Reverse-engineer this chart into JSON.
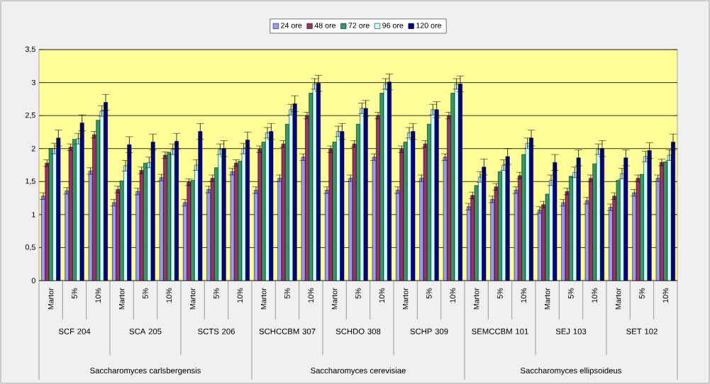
{
  "chart_data": {
    "type": "bar",
    "categories": [
      "Martor",
      "5%",
      "10%",
      "Martor",
      "5%",
      "10%",
      "Martor",
      "5%",
      "10%",
      "Martor",
      "5%",
      "10%",
      "Martor",
      "5%",
      "10%",
      "Martor",
      "5%",
      "10%",
      "Martor",
      "5%",
      "10%",
      "Martor",
      "5%",
      "10%",
      "Martor",
      "5%",
      "10%"
    ],
    "series": [
      {
        "name": "24 ore",
        "color": "#9999ff",
        "values": [
          1.28,
          1.36,
          1.66,
          1.18,
          1.35,
          1.56,
          1.18,
          1.38,
          1.65,
          1.37,
          1.55,
          1.87,
          1.37,
          1.55,
          1.87,
          1.37,
          1.55,
          1.87,
          1.12,
          1.23,
          1.37,
          1.07,
          1.18,
          1.21,
          1.11,
          1.33,
          1.55
        ],
        "errors": [
          0.05,
          0.05,
          0.05,
          0.05,
          0.05,
          0.05,
          0.05,
          0.05,
          0.05,
          0.05,
          0.05,
          0.05,
          0.05,
          0.05,
          0.05,
          0.05,
          0.05,
          0.05,
          0.05,
          0.05,
          0.05,
          0.05,
          0.05,
          0.05,
          0.05,
          0.05,
          0.05
        ]
      },
      {
        "name": "48 ore",
        "color": "#993366",
        "values": [
          1.78,
          2.02,
          2.21,
          1.38,
          1.67,
          1.9,
          1.49,
          1.55,
          1.78,
          1.99,
          2.07,
          2.5,
          1.99,
          2.07,
          2.5,
          1.99,
          2.07,
          2.5,
          1.29,
          1.42,
          1.59,
          1.15,
          1.35,
          1.55,
          1.28,
          1.55,
          1.79
        ],
        "errors": [
          0.05,
          0.05,
          0.05,
          0.05,
          0.05,
          0.05,
          0.05,
          0.05,
          0.05,
          0.05,
          0.05,
          0.05,
          0.05,
          0.05,
          0.05,
          0.05,
          0.05,
          0.05,
          0.05,
          0.05,
          0.05,
          0.05,
          0.05,
          0.05,
          0.05,
          0.05,
          0.05
        ]
      },
      {
        "name": "72 ore",
        "color": "#339966",
        "values": [
          2.0,
          2.14,
          2.43,
          1.51,
          1.78,
          1.94,
          1.52,
          1.71,
          1.81,
          2.1,
          2.37,
          2.84,
          2.1,
          2.37,
          2.84,
          2.1,
          2.37,
          2.84,
          1.44,
          1.65,
          1.91,
          1.31,
          1.58,
          1.77,
          1.52,
          1.61,
          1.8
        ]
      },
      {
        "name": "96 ore",
        "color": "#ccffff",
        "values": [
          2.0,
          2.15,
          2.57,
          1.74,
          1.79,
          1.99,
          1.75,
          1.99,
          2.0,
          2.24,
          2.59,
          2.98,
          2.26,
          2.61,
          2.98,
          2.24,
          2.59,
          2.98,
          1.57,
          1.75,
          2.08,
          1.52,
          1.64,
          1.99,
          1.62,
          1.88,
          1.9
        ],
        "errors": [
          0.08,
          0.08,
          0.08,
          0.08,
          0.08,
          0.08,
          0.08,
          0.08,
          0.08,
          0.08,
          0.08,
          0.08,
          0.08,
          0.08,
          0.08,
          0.08,
          0.08,
          0.08,
          0.08,
          0.08,
          0.08,
          0.08,
          0.08,
          0.08,
          0.08,
          0.08,
          0.08
        ]
      },
      {
        "name": "120 ore",
        "color": "#000080",
        "values": [
          2.16,
          2.39,
          2.7,
          2.06,
          2.1,
          2.11,
          2.26,
          2.0,
          2.13,
          2.26,
          2.68,
          2.99,
          2.26,
          2.61,
          3.01,
          2.26,
          2.59,
          2.98,
          1.72,
          1.88,
          2.16,
          1.79,
          1.86,
          2.0,
          1.86,
          1.97,
          2.1
        ],
        "errors": [
          0.12,
          0.12,
          0.12,
          0.12,
          0.12,
          0.12,
          0.12,
          0.12,
          0.12,
          0.12,
          0.12,
          0.12,
          0.12,
          0.12,
          0.12,
          0.12,
          0.12,
          0.12,
          0.12,
          0.12,
          0.12,
          0.12,
          0.12,
          0.12,
          0.12,
          0.12,
          0.12
        ]
      }
    ],
    "ylim": [
      0,
      3.5
    ],
    "yticks": [
      0,
      {
        "value": 0.5,
        "label": "0,5"
      },
      1,
      {
        "value": 1.5,
        "label": "1,5"
      },
      2,
      {
        "value": 2.5,
        "label": "2,5"
      },
      3,
      {
        "value": 3.5,
        "label": "3,5"
      }
    ],
    "grid": "y",
    "legend": "top",
    "annotations": [
      "SCF 204",
      "SCA 205",
      "SCTS 206",
      "SCHCCBM 307",
      "SCHDO 308",
      "SCHP 309",
      "SEMCCBM 101",
      "SEJ 103",
      "SET 102",
      "Saccharomyces carlsbergensis",
      "Saccharomyces cerevisiae",
      "Saccharomyces ellipsoideus"
    ]
  }
}
